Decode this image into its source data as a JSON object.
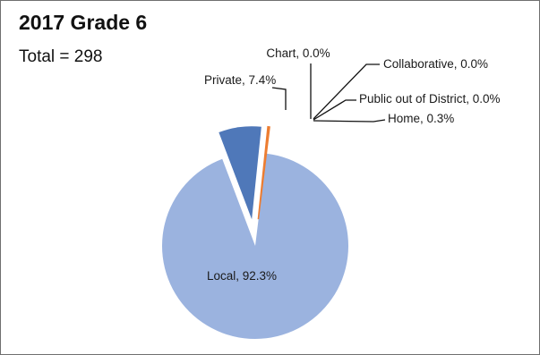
{
  "header": {
    "title": "2017 Grade 6",
    "total_label": "Total = 298"
  },
  "colors": {
    "local": "#9bb3df",
    "private": "#4f78b9",
    "home": "#ed7d31",
    "leader": "#111111"
  },
  "chart_data": {
    "type": "pie",
    "title": "2017 Grade 6",
    "subtitle": "Total = 298",
    "exploded": true,
    "slices": [
      {
        "name": "Local",
        "value": 92.3,
        "label": "Local, 92.3%"
      },
      {
        "name": "Private",
        "value": 7.4,
        "label": "Private, 7.4%"
      },
      {
        "name": "Chart",
        "value": 0.0,
        "label": "Chart, 0.0%"
      },
      {
        "name": "Collaborative",
        "value": 0.0,
        "label": "Collaborative, 0.0%"
      },
      {
        "name": "Public out of District",
        "value": 0.0,
        "label": "Public out of District, 0.0%"
      },
      {
        "name": "Home",
        "value": 0.3,
        "label": "Home, 0.3%"
      }
    ]
  }
}
